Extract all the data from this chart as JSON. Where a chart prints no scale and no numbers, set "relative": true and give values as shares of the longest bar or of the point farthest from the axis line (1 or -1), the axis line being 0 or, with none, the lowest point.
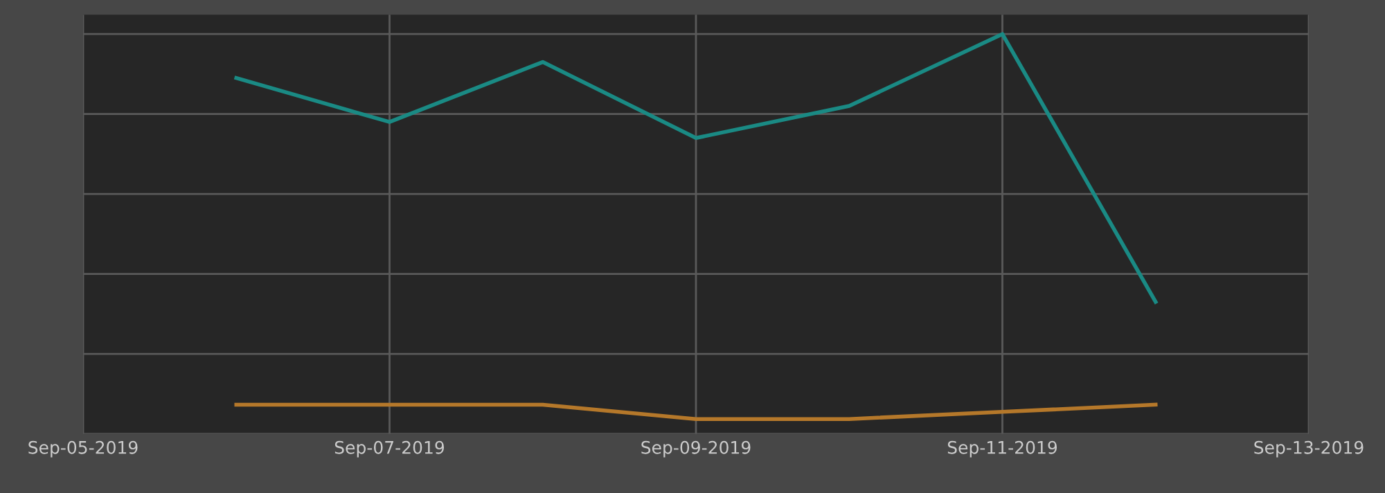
{
  "chart_data": {
    "type": "line",
    "relative": true,
    "x": [
      "2019-09-06",
      "2019-09-07",
      "2019-09-08",
      "2019-09-09",
      "2019-09-10",
      "2019-09-11",
      "2019-09-12"
    ],
    "series": [
      {
        "color": "#1a8a84",
        "values": [
          0.89,
          0.78,
          0.93,
          0.74,
          0.82,
          1,
          0.33
        ]
      },
      {
        "color": "#b5782a",
        "values": [
          0.073,
          0.073,
          0.073,
          0.037,
          0.037,
          0.055,
          0.073
        ]
      }
    ],
    "xlim": [
      "2019-09-05",
      "2019-09-13"
    ],
    "xticks": [
      {
        "value": "2019-09-05",
        "label": "Sep-05-2019"
      },
      {
        "value": "2019-09-07",
        "label": "Sep-07-2019"
      },
      {
        "value": "2019-09-09",
        "label": "Sep-09-2019"
      },
      {
        "value": "2019-09-11",
        "label": "Sep-11-2019"
      },
      {
        "value": "2019-09-13",
        "label": "Sep-13-2019"
      }
    ],
    "grid": true,
    "marker": "none",
    "line_style": "solid",
    "legend": false
  }
}
